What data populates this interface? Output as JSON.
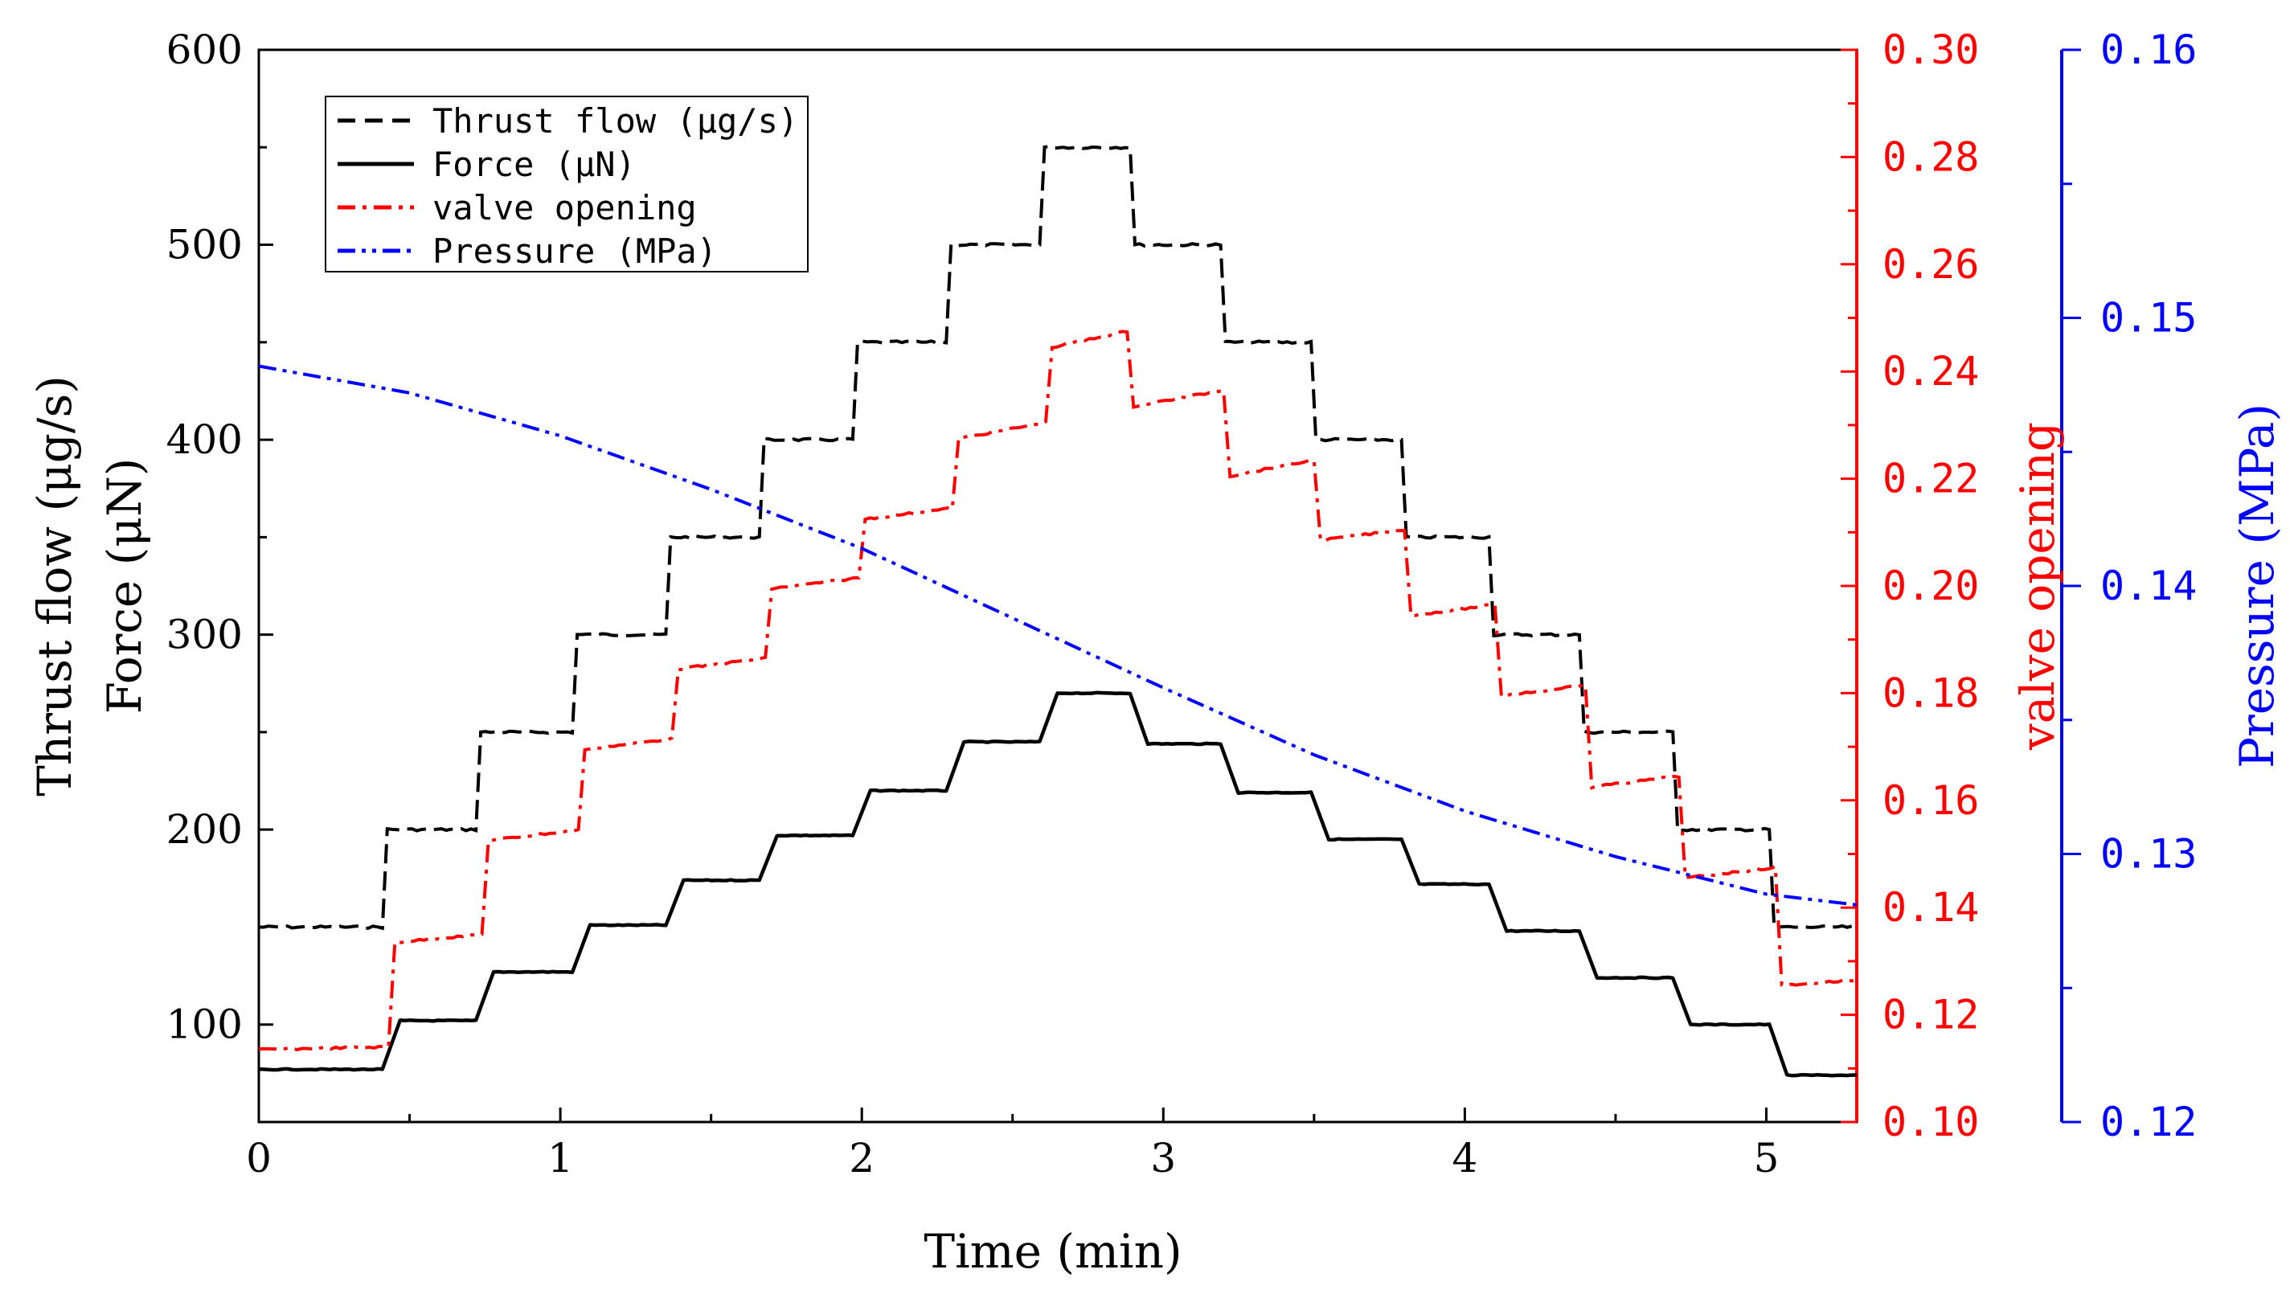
{
  "colors": {
    "thrust": "#000000",
    "force": "#000000",
    "valve": "#ff0000",
    "pressure": "#0000ff",
    "axis_left": "#000000",
    "axis_red": "#ff0000",
    "axis_blue": "#0000ff"
  },
  "chart_data": {
    "type": "line",
    "title": "",
    "xlabel": "Time (min)",
    "ylabel": "Thrust flow (μg/s)",
    "ylabel_2": "Force (μN)",
    "y2label": "valve opening",
    "y3label": "Pressure (MPa)",
    "xlim": [
      0,
      5.3
    ],
    "ylim": [
      50,
      600
    ],
    "y2lim": [
      0.1,
      0.3
    ],
    "y3lim": [
      0.12,
      0.16
    ],
    "x_ticks": [
      "0",
      "1",
      "2",
      "3",
      "4",
      "5"
    ],
    "y_ticks": [
      "100",
      "200",
      "300",
      "400",
      "500",
      "600"
    ],
    "y2_ticks": [
      "0.10",
      "0.12",
      "0.14",
      "0.16",
      "0.18",
      "0.20",
      "0.22",
      "0.24",
      "0.26",
      "0.28",
      "0.30"
    ],
    "y3_ticks": [
      "0.12",
      "0.13",
      "0.14",
      "0.15",
      "0.16"
    ],
    "legend_position": "top-left",
    "series": [
      {
        "name": "Thrust flow (μg/s)",
        "axis": "left",
        "style": "dashed",
        "steps": [
          {
            "t0": 0.0,
            "t1": 0.41,
            "v": 150
          },
          {
            "t0": 0.41,
            "t1": 0.72,
            "v": 200
          },
          {
            "t0": 0.72,
            "t1": 1.04,
            "v": 250
          },
          {
            "t0": 1.04,
            "t1": 1.35,
            "v": 300
          },
          {
            "t0": 1.35,
            "t1": 1.66,
            "v": 350
          },
          {
            "t0": 1.66,
            "t1": 1.97,
            "v": 400
          },
          {
            "t0": 1.97,
            "t1": 2.28,
            "v": 450
          },
          {
            "t0": 2.28,
            "t1": 2.59,
            "v": 500
          },
          {
            "t0": 2.59,
            "t1": 2.89,
            "v": 550
          },
          {
            "t0": 2.89,
            "t1": 3.19,
            "v": 500
          },
          {
            "t0": 3.19,
            "t1": 3.49,
            "v": 450
          },
          {
            "t0": 3.49,
            "t1": 3.79,
            "v": 400
          },
          {
            "t0": 3.79,
            "t1": 4.08,
            "v": 350
          },
          {
            "t0": 4.08,
            "t1": 4.38,
            "v": 300
          },
          {
            "t0": 4.38,
            "t1": 4.69,
            "v": 250
          },
          {
            "t0": 4.69,
            "t1": 5.01,
            "v": 200
          },
          {
            "t0": 5.01,
            "t1": 5.3,
            "v": 150
          }
        ]
      },
      {
        "name": "Force (μN)",
        "axis": "left",
        "style": "solid",
        "steps": [
          {
            "t0": 0.0,
            "t1": 0.41,
            "v": 77
          },
          {
            "t0": 0.41,
            "t1": 0.72,
            "v": 102
          },
          {
            "t0": 0.72,
            "t1": 1.04,
            "v": 127
          },
          {
            "t0": 1.04,
            "t1": 1.35,
            "v": 151
          },
          {
            "t0": 1.35,
            "t1": 1.66,
            "v": 174
          },
          {
            "t0": 1.66,
            "t1": 1.97,
            "v": 197
          },
          {
            "t0": 1.97,
            "t1": 2.28,
            "v": 220
          },
          {
            "t0": 2.28,
            "t1": 2.59,
            "v": 245
          },
          {
            "t0": 2.59,
            "t1": 2.89,
            "v": 270
          },
          {
            "t0": 2.89,
            "t1": 3.19,
            "v": 244
          },
          {
            "t0": 3.19,
            "t1": 3.49,
            "v": 219
          },
          {
            "t0": 3.49,
            "t1": 3.79,
            "v": 195
          },
          {
            "t0": 3.79,
            "t1": 4.08,
            "v": 172
          },
          {
            "t0": 4.08,
            "t1": 4.38,
            "v": 148
          },
          {
            "t0": 4.38,
            "t1": 4.69,
            "v": 124
          },
          {
            "t0": 4.69,
            "t1": 5.01,
            "v": 100
          },
          {
            "t0": 5.01,
            "t1": 5.3,
            "v": 74
          }
        ]
      },
      {
        "name": "valve opening",
        "axis": "right1",
        "style": "dashdot",
        "steps": [
          {
            "t0": 0.0,
            "t1": 0.43,
            "v0": 0.1135,
            "v1": 0.114
          },
          {
            "t0": 0.43,
            "t1": 0.74,
            "v0": 0.1335,
            "v1": 0.135
          },
          {
            "t0": 0.74,
            "t1": 1.06,
            "v0": 0.1525,
            "v1": 0.1545
          },
          {
            "t0": 1.06,
            "t1": 1.37,
            "v0": 0.1695,
            "v1": 0.1715
          },
          {
            "t0": 1.37,
            "t1": 1.68,
            "v0": 0.1845,
            "v1": 0.1865
          },
          {
            "t0": 1.68,
            "t1": 1.99,
            "v0": 0.1995,
            "v1": 0.2015
          },
          {
            "t0": 1.99,
            "t1": 2.3,
            "v0": 0.2125,
            "v1": 0.2145
          },
          {
            "t0": 2.3,
            "t1": 2.61,
            "v0": 0.2275,
            "v1": 0.2305
          },
          {
            "t0": 2.61,
            "t1": 2.88,
            "v0": 0.2445,
            "v1": 0.2475
          },
          {
            "t0": 2.88,
            "t1": 3.2,
            "v0": 0.2335,
            "v1": 0.2365
          },
          {
            "t0": 3.2,
            "t1": 3.5,
            "v0": 0.2205,
            "v1": 0.2235
          },
          {
            "t0": 3.5,
            "t1": 3.8,
            "v0": 0.2085,
            "v1": 0.2105
          },
          {
            "t0": 3.8,
            "t1": 4.1,
            "v0": 0.1945,
            "v1": 0.1965
          },
          {
            "t0": 4.1,
            "t1": 4.4,
            "v0": 0.1795,
            "v1": 0.1815
          },
          {
            "t0": 4.4,
            "t1": 4.71,
            "v0": 0.1625,
            "v1": 0.1645
          },
          {
            "t0": 4.71,
            "t1": 5.03,
            "v0": 0.1455,
            "v1": 0.1475
          },
          {
            "t0": 5.03,
            "t1": 5.3,
            "v0": 0.1255,
            "v1": 0.1265
          }
        ]
      },
      {
        "name": "Pressure (MPa)",
        "axis": "right2",
        "style": "dashdotdot",
        "x": [
          0.0,
          0.5,
          1.0,
          1.5,
          2.0,
          2.5,
          3.0,
          3.5,
          4.0,
          4.5,
          5.0,
          5.3
        ],
        "values": [
          0.1482,
          0.1472,
          0.1456,
          0.1436,
          0.1414,
          0.1388,
          0.1362,
          0.1337,
          0.1316,
          0.1299,
          0.1285,
          0.1281
        ]
      }
    ]
  }
}
